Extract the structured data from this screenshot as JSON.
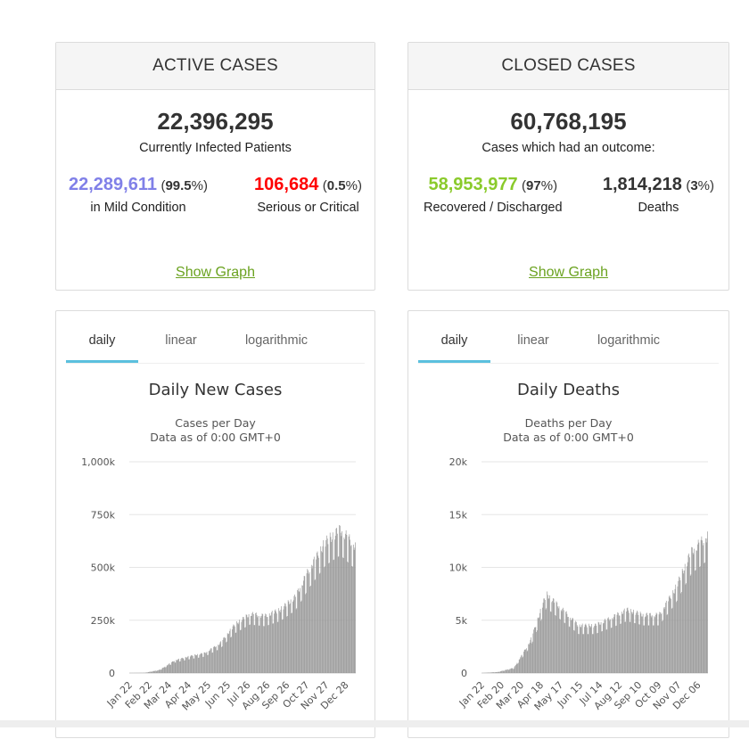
{
  "active": {
    "header": "ACTIVE CASES",
    "total": "22,396,295",
    "total_label": "Currently Infected Patients",
    "mild_value": "22,289,611",
    "mild_pct": "99.5",
    "mild_label": "in Mild Condition",
    "serious_value": "106,684",
    "serious_pct": "0.5",
    "serious_label": "Serious or Critical",
    "show_graph": "Show Graph",
    "colors": {
      "mild": "#8080e8",
      "serious": "#ff0000"
    }
  },
  "closed": {
    "header": "CLOSED CASES",
    "total": "60,768,195",
    "total_label": "Cases which had an outcome:",
    "recovered_value": "58,953,977",
    "recovered_pct": "97",
    "recovered_label": "Recovered / Discharged",
    "deaths_value": "1,814,218",
    "deaths_pct": "3",
    "deaths_label": "Deaths",
    "show_graph": "Show Graph",
    "colors": {
      "recovered": "#8ACA2B",
      "deaths": "#333333"
    }
  },
  "tabs": {
    "daily": "daily",
    "linear": "linear",
    "logarithmic": "logarithmic"
  },
  "pct_open": "(",
  "pct_close": "%)",
  "chart_data": [
    {
      "type": "bar",
      "title": "Daily New Cases",
      "subtitle_1": "Cases per Day",
      "subtitle_2": "Data as of 0:00 GMT+0",
      "ylim": [
        0,
        1000000
      ],
      "yticks": [
        0,
        250000,
        500000,
        750000,
        1000000
      ],
      "ytick_labels": [
        "0",
        "250k",
        "500k",
        "750k",
        "1,000k"
      ],
      "xtick_labels": [
        "Jan 22",
        "Feb 22",
        "Mar 24",
        "Apr 24",
        "May 25",
        "Jun 25",
        "Jul 26",
        "Aug 26",
        "Sep 26",
        "Oct 27",
        "Nov 27",
        "Dec 28"
      ],
      "series_keyframes": [
        {
          "month": "Jan",
          "value": 0
        },
        {
          "month": "Feb",
          "value": 1000
        },
        {
          "month": "Mar",
          "value": 15000
        },
        {
          "month": "Mar end",
          "value": 60000
        },
        {
          "month": "Apr",
          "value": 80000
        },
        {
          "month": "May",
          "value": 95000
        },
        {
          "month": "Jun",
          "value": 140000
        },
        {
          "month": "Jul",
          "value": 230000
        },
        {
          "month": "Jul end",
          "value": 280000
        },
        {
          "month": "Aug",
          "value": 270000
        },
        {
          "month": "Sep",
          "value": 300000
        },
        {
          "month": "Oct",
          "value": 360000
        },
        {
          "month": "Oct end",
          "value": 500000
        },
        {
          "month": "Nov",
          "value": 620000
        },
        {
          "month": "Dec",
          "value": 680000
        },
        {
          "month": "Dec end",
          "value": 600000
        }
      ],
      "color": "#999999"
    },
    {
      "type": "bar",
      "title": "Daily Deaths",
      "subtitle_1": "Deaths per Day",
      "subtitle_2": "Data as of 0:00 GMT+0",
      "ylim": [
        0,
        20000
      ],
      "yticks": [
        0,
        5000,
        10000,
        15000,
        20000
      ],
      "ytick_labels": [
        "0",
        "5k",
        "10k",
        "15k",
        "20k"
      ],
      "xtick_labels": [
        "Jan 22",
        "Feb 20",
        "Mar 20",
        "Apr 18",
        "May 17",
        "Jun 15",
        "Jul 14",
        "Aug 12",
        "Sep 10",
        "Oct 09",
        "Nov 07",
        "Dec 06"
      ],
      "series_keyframes": [
        {
          "month": "Jan",
          "value": 0
        },
        {
          "month": "Feb",
          "value": 100
        },
        {
          "month": "Mar",
          "value": 500
        },
        {
          "month": "Mar end",
          "value": 3000
        },
        {
          "month": "Apr",
          "value": 7500
        },
        {
          "month": "Apr end",
          "value": 6000
        },
        {
          "month": "May",
          "value": 4500
        },
        {
          "month": "Jun",
          "value": 4500
        },
        {
          "month": "Jul",
          "value": 5200
        },
        {
          "month": "Aug",
          "value": 6000
        },
        {
          "month": "Sep",
          "value": 5500
        },
        {
          "month": "Oct",
          "value": 5500
        },
        {
          "month": "Nov",
          "value": 8000
        },
        {
          "month": "Dec",
          "value": 11500
        },
        {
          "month": "Dec end",
          "value": 13000
        }
      ],
      "color": "#999999"
    }
  ]
}
